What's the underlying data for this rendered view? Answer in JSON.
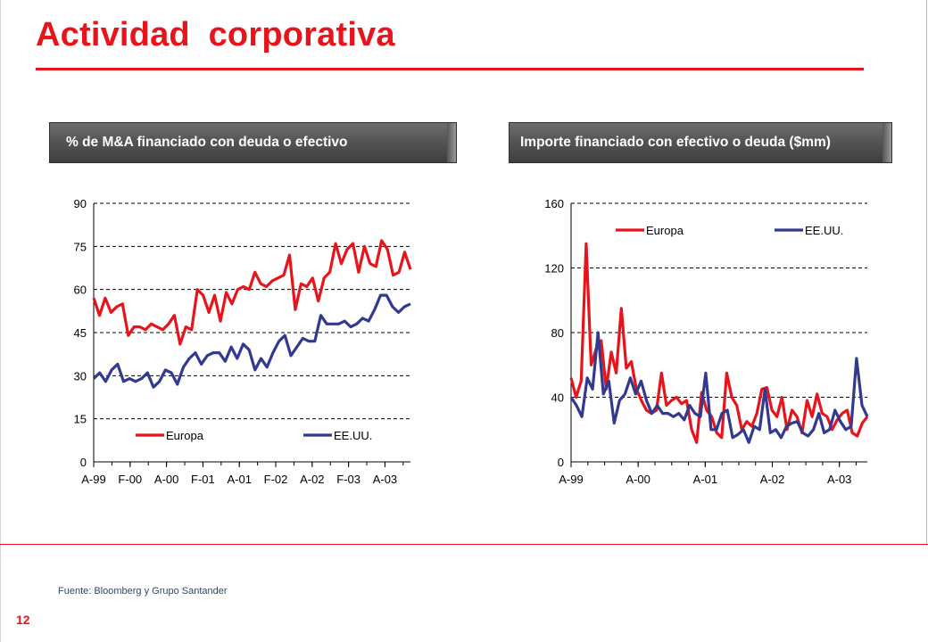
{
  "page": {
    "title": "Actividad corporativa",
    "source": "Fuente: Bloomberg y Grupo Santander",
    "page_number": "12"
  },
  "colors": {
    "accent": "#e8141b",
    "europa": "#e8141b",
    "eeuu": "#313a8f",
    "text_blue": "#30466e"
  },
  "chart_data": [
    {
      "type": "line",
      "title": "% de M&A financiado con deuda o efectivo",
      "xlabel": "",
      "ylabel": "",
      "ylim": [
        0,
        90
      ],
      "yticks": [
        0,
        15,
        30,
        45,
        60,
        75,
        90
      ],
      "xtick_labels": [
        "A-99",
        "F-00",
        "A-00",
        "F-01",
        "A-01",
        "F-02",
        "A-02",
        "F-03",
        "A-03"
      ],
      "xtick_positions": [
        0,
        10,
        20,
        30,
        40,
        50,
        60,
        70,
        80
      ],
      "x_count": 88,
      "grid": "horizontal dashed",
      "legend_position": "bottom",
      "series": [
        {
          "name": "Europa",
          "color": "#e8141b",
          "values": [
            57,
            51,
            57,
            52,
            54,
            55,
            44,
            47,
            47,
            46,
            48,
            47,
            46,
            48,
            51,
            41,
            47,
            46,
            60,
            58,
            52,
            58,
            49,
            59,
            55,
            60,
            61,
            60,
            66,
            62,
            61,
            63,
            64,
            65,
            72,
            53,
            62,
            61,
            64,
            56,
            64,
            66,
            76,
            69,
            74,
            76,
            66,
            75,
            69,
            68,
            77,
            74,
            65,
            66,
            73,
            67
          ]
        },
        {
          "name": "EE.UU.",
          "color": "#313a8f",
          "values": [
            29,
            31,
            28,
            32,
            34,
            28,
            29,
            28,
            29,
            31,
            26,
            28,
            32,
            31,
            27,
            33,
            36,
            38,
            34,
            37,
            38,
            38,
            35,
            40,
            36,
            41,
            39,
            32,
            36,
            33,
            38,
            42,
            44,
            37,
            40,
            43,
            42,
            42,
            51,
            48,
            48,
            48,
            49,
            47,
            48,
            50,
            49,
            53,
            58,
            58,
            54,
            52,
            54,
            55
          ]
        }
      ]
    },
    {
      "type": "line",
      "title": "Importe financiado con efectivo o deuda ($mm)",
      "xlabel": "",
      "ylabel": "",
      "ylim": [
        0,
        160
      ],
      "yticks": [
        0,
        40,
        80,
        120,
        160
      ],
      "xtick_labels": [
        "A-99",
        "A-00",
        "A-01",
        "A-02",
        "A-03"
      ],
      "xtick_positions": [
        0,
        12,
        24,
        36,
        48
      ],
      "x_count": 54,
      "grid": "horizontal dashed",
      "legend_position": "top",
      "series": [
        {
          "name": "Europa",
          "color": "#e8141b",
          "values": [
            52,
            40,
            50,
            135,
            60,
            70,
            75,
            45,
            68,
            55,
            95,
            58,
            62,
            45,
            38,
            32,
            30,
            32,
            55,
            35,
            38,
            40,
            36,
            38,
            20,
            12,
            43,
            32,
            28,
            18,
            15,
            55,
            40,
            35,
            20,
            25,
            22,
            30,
            45,
            46,
            32,
            28,
            40,
            20,
            32,
            28,
            18,
            38,
            28,
            42,
            30,
            28,
            20,
            26,
            30,
            32,
            18,
            16,
            24,
            28
          ]
        },
        {
          "name": "EE.UU.",
          "color": "#313a8f",
          "values": [
            40,
            35,
            28,
            52,
            45,
            80,
            42,
            50,
            24,
            38,
            42,
            52,
            42,
            50,
            38,
            30,
            35,
            30,
            30,
            28,
            30,
            26,
            35,
            30,
            28,
            55,
            20,
            20,
            30,
            32,
            15,
            17,
            20,
            12,
            22,
            20,
            45,
            18,
            20,
            15,
            22,
            24,
            25,
            18,
            16,
            20,
            30,
            18,
            20,
            32,
            25,
            20,
            22,
            64,
            35,
            28
          ]
        }
      ],
      "x_counts_per_series": [
        60,
        56
      ]
    }
  ],
  "legend_labels": {
    "europa": "Europa",
    "eeuu": "EE.UU."
  }
}
